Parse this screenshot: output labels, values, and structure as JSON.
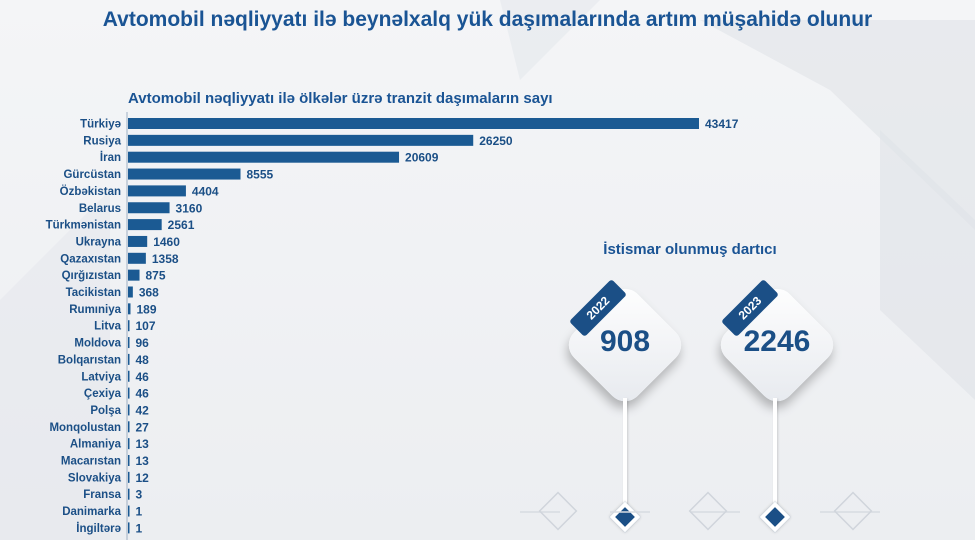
{
  "page": {
    "title": "Avtomobil nəqliyyatı ilə beynəlxalq yük daşımalarında artım müşahidə olunur"
  },
  "colors": {
    "bar": "#1b5a93",
    "text": "#1b4f86",
    "title": "#1a5494"
  },
  "chart_data": [
    {
      "type": "bar",
      "orientation": "horizontal",
      "title": "Avtomobil nəqliyyatı ilə ölkələr üzrə tranzit daşımaların sayı",
      "categories": [
        "Türkiyə",
        "Rusiya",
        "İran",
        "Gürcüstan",
        "Özbəkistan",
        "Belarus",
        "Türkmənistan",
        "Ukrayna",
        "Qazaxıstan",
        "Qırğızıstan",
        "Tacikistan",
        "Rumıniya",
        "Litva",
        "Moldova",
        "Bolqarıstan",
        "Latviya",
        "Çexiya",
        "Polşa",
        "Monqolustan",
        "Almaniya",
        "Macarıstan",
        "Slovakiya",
        "Fransa",
        "Danimarka",
        "İngiltərə"
      ],
      "values": [
        43417,
        26250,
        20609,
        8555,
        4404,
        3160,
        2561,
        1460,
        1358,
        875,
        368,
        189,
        107,
        96,
        48,
        46,
        46,
        42,
        27,
        13,
        13,
        12,
        3,
        1,
        1
      ],
      "xlim": [
        0,
        43417
      ]
    }
  ],
  "tractors": {
    "title": "İstismar olunmuş dartıcı",
    "items": [
      {
        "year": "2022",
        "value": "908"
      },
      {
        "year": "2023",
        "value": "2246"
      }
    ]
  }
}
